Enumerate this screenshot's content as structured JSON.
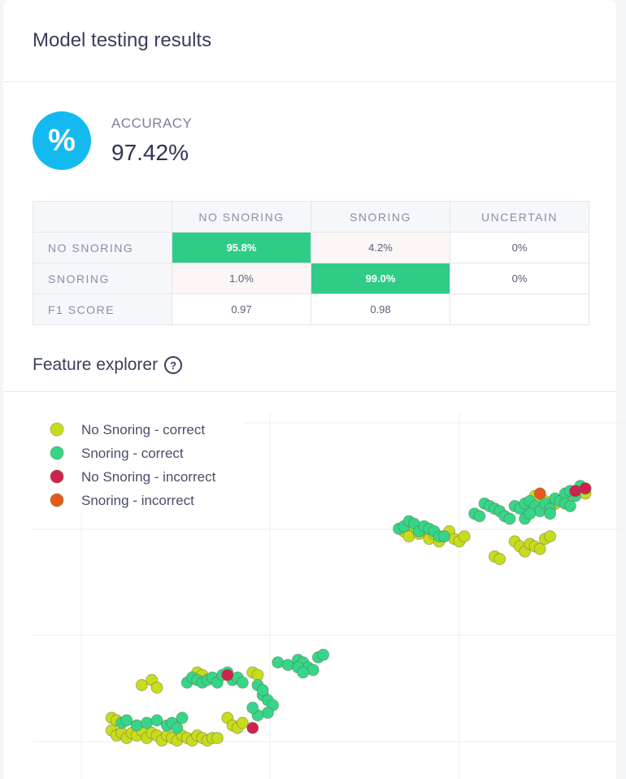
{
  "header": {
    "title": "Model testing results"
  },
  "accuracy": {
    "icon": "percent-icon",
    "icon_glyph": "%",
    "label": "ACCURACY",
    "value": "97.42%",
    "color": "#13b9ef"
  },
  "matrix": {
    "columns": [
      "NO SNORING",
      "SNORING",
      "UNCERTAIN"
    ],
    "rows": [
      {
        "label": "NO SNORING",
        "cells": [
          "95.8%",
          "4.2%",
          "0%"
        ]
      },
      {
        "label": "SNORING",
        "cells": [
          "1.0%",
          "99.0%",
          "0%"
        ]
      },
      {
        "label": "F1 SCORE",
        "cells": [
          "0.97",
          "0.98",
          ""
        ]
      }
    ],
    "highlight_color": "#2ecc87"
  },
  "feature_explorer": {
    "title": "Feature explorer",
    "help_icon": "help-icon"
  },
  "chart_data": {
    "type": "scatter",
    "title": "",
    "xlabel": "",
    "ylabel": "",
    "xlim": [
      0,
      100
    ],
    "ylim": [
      0,
      100
    ],
    "grid": true,
    "legend_position": "top-left",
    "series": [
      {
        "name": "No Snoring - correct",
        "color": "#c8dc1e",
        "points": [
          [
            6,
            7
          ],
          [
            7,
            5
          ],
          [
            8,
            6
          ],
          [
            9,
            4
          ],
          [
            10,
            6
          ],
          [
            11,
            5
          ],
          [
            12,
            7
          ],
          [
            13,
            4
          ],
          [
            14,
            6
          ],
          [
            15,
            5
          ],
          [
            16,
            3
          ],
          [
            17,
            5
          ],
          [
            18,
            4
          ],
          [
            19,
            3
          ],
          [
            20,
            5
          ],
          [
            21,
            4
          ],
          [
            22,
            3
          ],
          [
            23,
            5
          ],
          [
            24,
            4
          ],
          [
            25,
            3
          ],
          [
            26,
            4
          ],
          [
            27,
            4
          ],
          [
            6,
            12
          ],
          [
            7,
            11
          ],
          [
            12,
            25
          ],
          [
            14,
            27
          ],
          [
            15,
            24
          ],
          [
            23,
            30
          ],
          [
            24,
            29
          ],
          [
            29,
            12
          ],
          [
            30,
            9
          ],
          [
            31,
            8
          ],
          [
            32,
            10
          ],
          [
            34,
            30
          ],
          [
            35,
            29
          ],
          [
            64,
            86
          ],
          [
            65,
            84
          ],
          [
            66,
            88
          ],
          [
            67,
            85
          ],
          [
            68,
            87
          ],
          [
            69,
            83
          ],
          [
            70,
            85
          ],
          [
            71,
            82
          ],
          [
            72,
            84
          ],
          [
            73,
            86
          ],
          [
            74,
            83
          ],
          [
            75,
            82
          ],
          [
            76,
            84
          ],
          [
            90,
            100
          ],
          [
            92,
            98
          ],
          [
            94,
            97
          ],
          [
            96,
            100
          ],
          [
            98,
            101
          ],
          [
            99,
            103
          ],
          [
            100,
            101
          ],
          [
            82,
            76
          ],
          [
            83,
            75
          ],
          [
            86,
            82
          ],
          [
            87,
            80
          ],
          [
            88,
            78
          ],
          [
            89,
            81
          ],
          [
            90,
            80
          ],
          [
            91,
            79
          ],
          [
            92,
            83
          ],
          [
            93,
            84
          ]
        ]
      },
      {
        "name": "Snoring - correct",
        "color": "#35d68a",
        "points": [
          [
            8,
            10
          ],
          [
            9,
            11
          ],
          [
            11,
            9
          ],
          [
            13,
            10
          ],
          [
            15,
            11
          ],
          [
            17,
            9
          ],
          [
            18,
            10
          ],
          [
            19,
            8
          ],
          [
            20,
            12
          ],
          [
            21,
            26
          ],
          [
            22,
            28
          ],
          [
            23,
            27
          ],
          [
            24,
            26
          ],
          [
            25,
            27
          ],
          [
            26,
            28
          ],
          [
            27,
            26
          ],
          [
            28,
            29
          ],
          [
            29,
            30
          ],
          [
            30,
            27
          ],
          [
            31,
            28
          ],
          [
            32,
            26
          ],
          [
            35,
            25
          ],
          [
            36,
            21
          ],
          [
            37,
            19
          ],
          [
            38,
            17
          ],
          [
            37,
            14
          ],
          [
            35,
            13
          ],
          [
            34,
            16
          ],
          [
            36,
            23
          ],
          [
            39,
            34
          ],
          [
            41,
            33
          ],
          [
            43,
            35
          ],
          [
            44,
            34
          ],
          [
            45,
            32
          ],
          [
            46,
            31
          ],
          [
            47,
            36
          ],
          [
            48,
            37
          ],
          [
            43,
            32
          ],
          [
            44,
            30
          ],
          [
            63,
            87
          ],
          [
            64,
            88
          ],
          [
            65,
            90
          ],
          [
            66,
            89
          ],
          [
            67,
            86
          ],
          [
            68,
            88
          ],
          [
            69,
            87
          ],
          [
            70,
            86
          ],
          [
            71,
            84
          ],
          [
            72,
            84
          ],
          [
            78,
            93
          ],
          [
            79,
            92
          ],
          [
            80,
            97
          ],
          [
            81,
            96
          ],
          [
            82,
            95
          ],
          [
            83,
            94
          ],
          [
            84,
            92
          ],
          [
            85,
            91
          ],
          [
            86,
            96
          ],
          [
            87,
            95
          ],
          [
            88,
            97
          ],
          [
            89,
            98
          ],
          [
            90,
            96
          ],
          [
            91,
            94
          ],
          [
            92,
            97
          ],
          [
            93,
            95
          ],
          [
            94,
            99
          ],
          [
            95,
            98
          ],
          [
            96,
            101
          ],
          [
            97,
            102
          ],
          [
            98,
            100
          ],
          [
            99,
            104
          ],
          [
            100,
            103
          ],
          [
            88,
            91
          ],
          [
            89,
            93
          ],
          [
            93,
            93
          ],
          [
            96,
            97
          ],
          [
            97,
            96
          ]
        ]
      },
      {
        "name": "No Snoring - incorrect",
        "color": "#d1214f",
        "points": [
          [
            29,
            29
          ],
          [
            34,
            8
          ],
          [
            98,
            102
          ],
          [
            100,
            103
          ]
        ]
      },
      {
        "name": "Snoring - incorrect",
        "color": "#e55a1b",
        "points": [
          [
            91,
            101
          ]
        ]
      }
    ]
  }
}
